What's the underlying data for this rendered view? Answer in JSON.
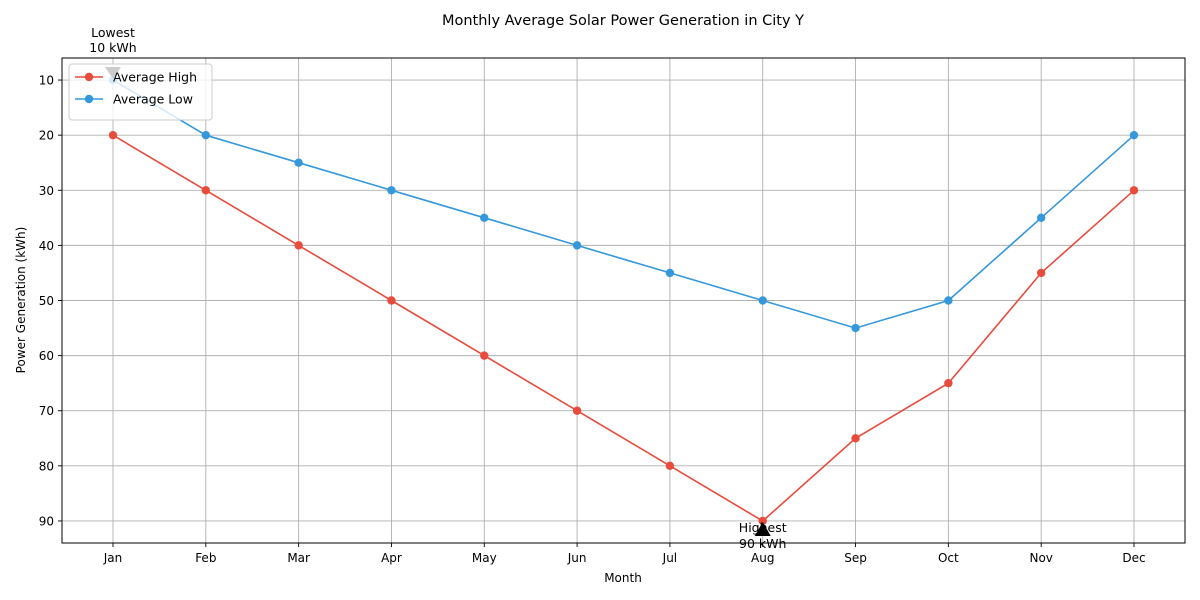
{
  "chart_data": {
    "type": "line",
    "title": "Monthly Average Solar Power Generation in City Y",
    "xlabel": "Month",
    "ylabel": "Power Generation (kWh)",
    "categories": [
      "Jan",
      "Feb",
      "Mar",
      "Apr",
      "May",
      "Jun",
      "Jul",
      "Aug",
      "Sep",
      "Oct",
      "Nov",
      "Dec"
    ],
    "y_inverted": true,
    "ylim": [
      6,
      94
    ],
    "yticks": [
      10,
      20,
      30,
      40,
      50,
      60,
      70,
      80,
      90
    ],
    "grid": true,
    "legend_position": "top-left",
    "series": [
      {
        "name": "Average High",
        "color": "#e74c3c",
        "marker": "circle",
        "values": [
          20,
          30,
          40,
          50,
          60,
          70,
          80,
          90,
          75,
          65,
          45,
          30
        ]
      },
      {
        "name": "Average Low",
        "color": "#3498db",
        "marker": "circle",
        "values": [
          10,
          20,
          25,
          30,
          35,
          40,
          45,
          50,
          55,
          50,
          35,
          20
        ]
      }
    ],
    "annotations": [
      {
        "label": "Highest",
        "value_text": "90 kWh",
        "category": "Aug",
        "value": 90
      },
      {
        "label": "Lowest",
        "value_text": "10 kWh",
        "category": "Jan",
        "value": 10
      }
    ]
  }
}
